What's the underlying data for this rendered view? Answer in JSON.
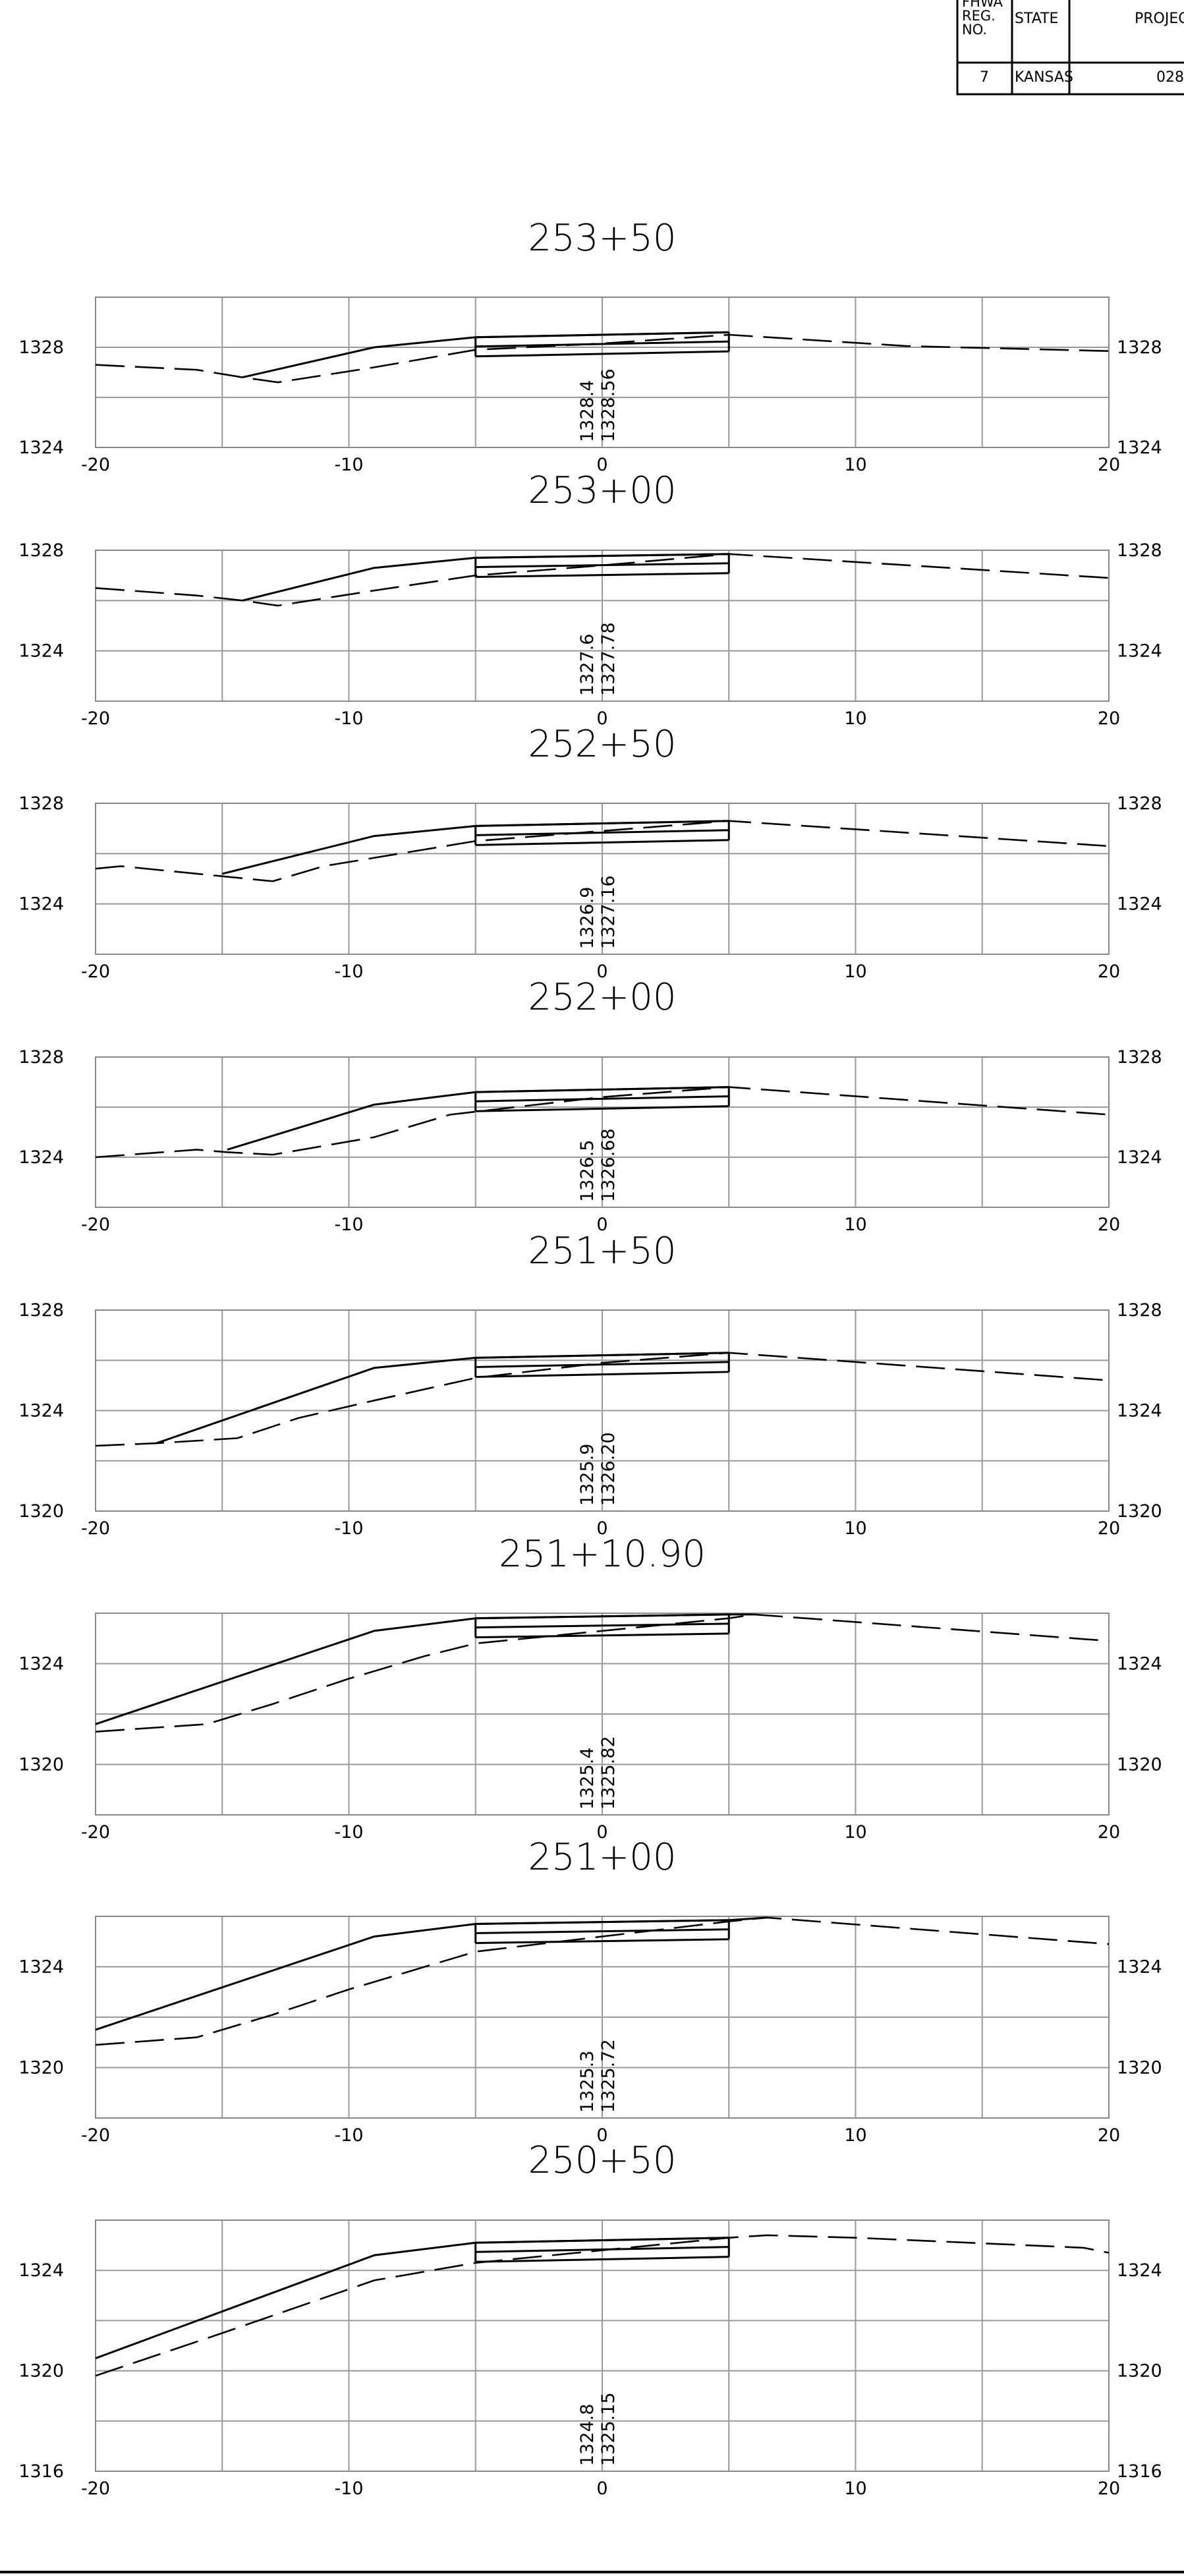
{
  "title_block": {
    "headers": [
      "FHWA REG. NO.",
      "STATE",
      "PROJEC"
    ],
    "values": [
      "7",
      "KANSAS",
      "028"
    ]
  },
  "chart_data": [
    {
      "type": "line",
      "title": "253+50",
      "xlim": [
        -20,
        20
      ],
      "ylim": [
        1324,
        1330
      ],
      "x_ticks": [
        "-20",
        "-10",
        "0",
        "10",
        "20"
      ],
      "y_ticks": [
        "1324",
        "1328"
      ],
      "existing_elev": "1328.4",
      "proposed_elev": "1328.56",
      "series": [
        {
          "style": "solid",
          "x": [
            -14.2,
            -9,
            -5,
            5
          ],
          "y": [
            1326.8,
            1328.0,
            1328.4,
            1328.6
          ]
        },
        {
          "style": "dashed",
          "x": [
            -20,
            -16,
            -14.2,
            -12.8,
            -9,
            -5,
            0,
            5,
            12,
            20
          ],
          "y": [
            1327.3,
            1327.1,
            1326.8,
            1326.6,
            1327.2,
            1327.9,
            1328.15,
            1328.5,
            1328.05,
            1327.85
          ]
        }
      ]
    },
    {
      "type": "line",
      "title": "253+00",
      "xlim": [
        -20,
        20
      ],
      "ylim": [
        1322,
        1328
      ],
      "x_ticks": [
        "-20",
        "-10",
        "0",
        "10",
        "20"
      ],
      "y_ticks": [
        "1324",
        "1328"
      ],
      "existing_elev": "1327.6",
      "proposed_elev": "1327.78",
      "series": [
        {
          "style": "solid",
          "x": [
            -14.2,
            -9,
            -5,
            5
          ],
          "y": [
            1326.0,
            1327.3,
            1327.7,
            1327.85
          ]
        },
        {
          "style": "dashed",
          "x": [
            -20,
            -16,
            -14.2,
            -12.8,
            -9,
            -5,
            0,
            5,
            20
          ],
          "y": [
            1326.5,
            1326.2,
            1326.0,
            1325.8,
            1326.4,
            1327.0,
            1327.4,
            1327.85,
            1326.9
          ]
        }
      ]
    },
    {
      "type": "line",
      "title": "252+50",
      "xlim": [
        -20,
        20
      ],
      "ylim": [
        1322,
        1328
      ],
      "x_ticks": [
        "-20",
        "-10",
        "0",
        "10",
        "20"
      ],
      "y_ticks": [
        "1324",
        "1328"
      ],
      "existing_elev": "1326.9",
      "proposed_elev": "1327.16",
      "series": [
        {
          "style": "solid",
          "x": [
            -15,
            -9,
            -5,
            5
          ],
          "y": [
            1325.2,
            1326.7,
            1327.1,
            1327.3
          ]
        },
        {
          "style": "dashed",
          "x": [
            -20,
            -19,
            -15,
            -13,
            -11,
            -5,
            0,
            5,
            20
          ],
          "y": [
            1325.4,
            1325.5,
            1325.1,
            1324.9,
            1325.5,
            1326.5,
            1326.9,
            1327.3,
            1326.3
          ]
        }
      ]
    },
    {
      "type": "line",
      "title": "252+00",
      "xlim": [
        -20,
        20
      ],
      "ylim": [
        1322,
        1328
      ],
      "x_ticks": [
        "-20",
        "-10",
        "0",
        "10",
        "20"
      ],
      "y_ticks": [
        "1324",
        "1328"
      ],
      "existing_elev": "1326.5",
      "proposed_elev": "1326.68",
      "series": [
        {
          "style": "solid",
          "x": [
            -14.8,
            -9,
            -5,
            5
          ],
          "y": [
            1324.3,
            1326.1,
            1326.6,
            1326.8
          ]
        },
        {
          "style": "dashed",
          "x": [
            -20,
            -16,
            -14.8,
            -13,
            -9,
            -6,
            0,
            5,
            20
          ],
          "y": [
            1324.0,
            1324.3,
            1324.2,
            1324.1,
            1324.8,
            1325.7,
            1326.4,
            1326.8,
            1325.7
          ]
        }
      ]
    },
    {
      "type": "line",
      "title": "251+50",
      "xlim": [
        -20,
        20
      ],
      "ylim": [
        1320,
        1328
      ],
      "x_ticks": [
        "-20",
        "-10",
        "0",
        "10",
        "20"
      ],
      "y_ticks": [
        "1320",
        "1324",
        "1328"
      ],
      "existing_elev": "1325.9",
      "proposed_elev": "1326.20",
      "series": [
        {
          "style": "solid",
          "x": [
            -17.6,
            -9,
            -5,
            5
          ],
          "y": [
            1322.7,
            1325.7,
            1326.1,
            1326.3
          ]
        },
        {
          "style": "dashed",
          "x": [
            -20,
            -17.6,
            -14.4,
            -12,
            -9,
            -5,
            0,
            5,
            20
          ],
          "y": [
            1322.6,
            1322.7,
            1322.9,
            1323.7,
            1324.4,
            1325.3,
            1325.9,
            1326.3,
            1325.2
          ]
        }
      ]
    },
    {
      "type": "line",
      "title": "251+10.90",
      "xlim": [
        -20,
        20
      ],
      "ylim": [
        1318,
        1326
      ],
      "x_ticks": [
        "-20",
        "-10",
        "0",
        "10",
        "20"
      ],
      "y_ticks": [
        "1320",
        "1324"
      ],
      "existing_elev": "1325.4",
      "proposed_elev": "1325.82",
      "series": [
        {
          "style": "solid",
          "x": [
            -20,
            -9,
            -5,
            5,
            6
          ],
          "y": [
            1321.6,
            1325.3,
            1325.8,
            1325.95,
            1325.95
          ]
        },
        {
          "style": "dashed",
          "x": [
            -20,
            -15.6,
            -13,
            -10,
            -7,
            -5,
            0,
            5,
            6,
            20
          ],
          "y": [
            1321.3,
            1321.6,
            1322.4,
            1323.4,
            1324.3,
            1324.8,
            1325.3,
            1325.8,
            1325.95,
            1324.9
          ]
        }
      ]
    },
    {
      "type": "line",
      "title": "251+00",
      "xlim": [
        -20,
        20
      ],
      "ylim": [
        1318,
        1326
      ],
      "x_ticks": [
        "-20",
        "-10",
        "0",
        "10",
        "20"
      ],
      "y_ticks": [
        "1320",
        "1324"
      ],
      "existing_elev": "1325.3",
      "proposed_elev": "1325.72",
      "series": [
        {
          "style": "solid",
          "x": [
            -20,
            -9,
            -5,
            5,
            6.5
          ],
          "y": [
            1321.5,
            1325.2,
            1325.7,
            1325.85,
            1325.95
          ]
        },
        {
          "style": "dashed",
          "x": [
            -20,
            -16,
            -13,
            -10,
            -7,
            -5,
            0,
            5,
            6.5,
            20
          ],
          "y": [
            1320.9,
            1321.2,
            1322.1,
            1323.1,
            1324.0,
            1324.6,
            1325.2,
            1325.8,
            1325.95,
            1324.9
          ]
        }
      ]
    },
    {
      "type": "line",
      "title": "250+50",
      "xlim": [
        -20,
        20
      ],
      "ylim": [
        1316,
        1326
      ],
      "x_ticks": [
        "-20",
        "-10",
        "0",
        "10",
        "20"
      ],
      "y_ticks": [
        "1316",
        "1320",
        "1324"
      ],
      "existing_elev": "1324.8",
      "proposed_elev": "1325.15",
      "series": [
        {
          "style": "solid",
          "x": [
            -20,
            -9,
            -5,
            5
          ],
          "y": [
            1320.5,
            1324.6,
            1325.1,
            1325.3
          ]
        },
        {
          "style": "dashed",
          "x": [
            -20,
            -15,
            -9,
            -5,
            0,
            5,
            6.5,
            10,
            19,
            20
          ],
          "y": [
            1319.8,
            1321.5,
            1323.6,
            1324.3,
            1324.8,
            1325.3,
            1325.4,
            1325.3,
            1324.9,
            1324.7
          ]
        }
      ]
    }
  ]
}
